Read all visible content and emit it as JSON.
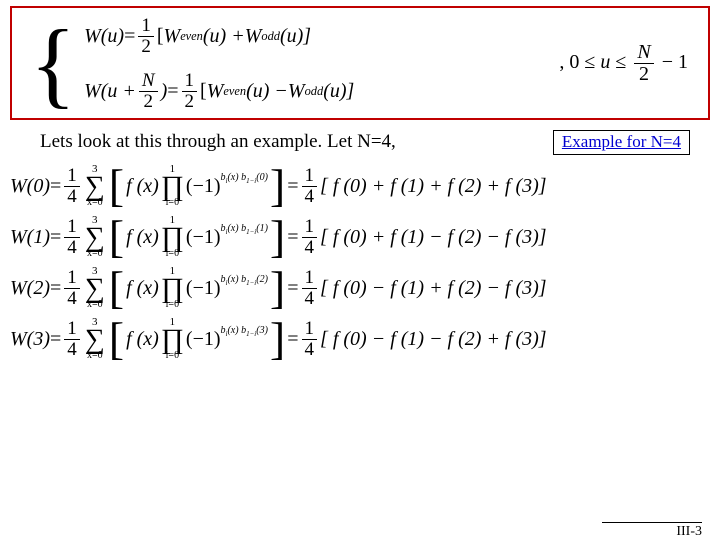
{
  "box": {
    "eq1_lhs": "W(u)",
    "eq1_rhs_pre": "[",
    "eq1_w1": "W",
    "eq1_sub1": "even",
    "eq1_mid": "(u) + ",
    "eq1_w2": "W",
    "eq1_sub2": "odd",
    "eq1_end": "(u)]",
    "eq2_lhs_a": "W(u + ",
    "eq2_lhs_b": ")",
    "eq2_w1": "W",
    "eq2_sub1": "even",
    "eq2_mid": "(u) − ",
    "eq2_w2": "W",
    "eq2_sub2": "odd",
    "eq2_end": "(u)]",
    "half_num": "1",
    "half_den": "2",
    "N_num": "N",
    "N_den": "2",
    "range_a": ", 0 ≤ ",
    "range_u": "u",
    "range_b": " ≤ ",
    "range_c": " − 1"
  },
  "transition": {
    "text": "Lets look at this through an example. Let N=4,",
    "link": "Example for N=4"
  },
  "w": [
    {
      "idx": "0",
      "signs": "[ f (0) + f (1) + f (2) + f (3)]",
      "exp": "b_i(x) b_{1-i}(0)"
    },
    {
      "idx": "1",
      "signs": "[ f (0) + f (1) − f (2) − f (3)]",
      "exp": "b_i(x) b_{1-i}(1)"
    },
    {
      "idx": "2",
      "signs": "[ f (0) − f (1) + f (2) − f (3)]",
      "exp": "b_i(x) b_{1-i}(2)"
    },
    {
      "idx": "3",
      "signs": "[ f (0) − f (1) − f (2) + f (3)]",
      "exp": "b_i(x) b_{1-i}(3)"
    }
  ],
  "common": {
    "q_num": "1",
    "q_den": "4",
    "sum_top": "3",
    "sum_bot": "x=0",
    "prod_top": "1",
    "prod_bot": "i=0",
    "fx": "f (x)",
    "neg1": "(−1)"
  },
  "pagenum": "III-3"
}
